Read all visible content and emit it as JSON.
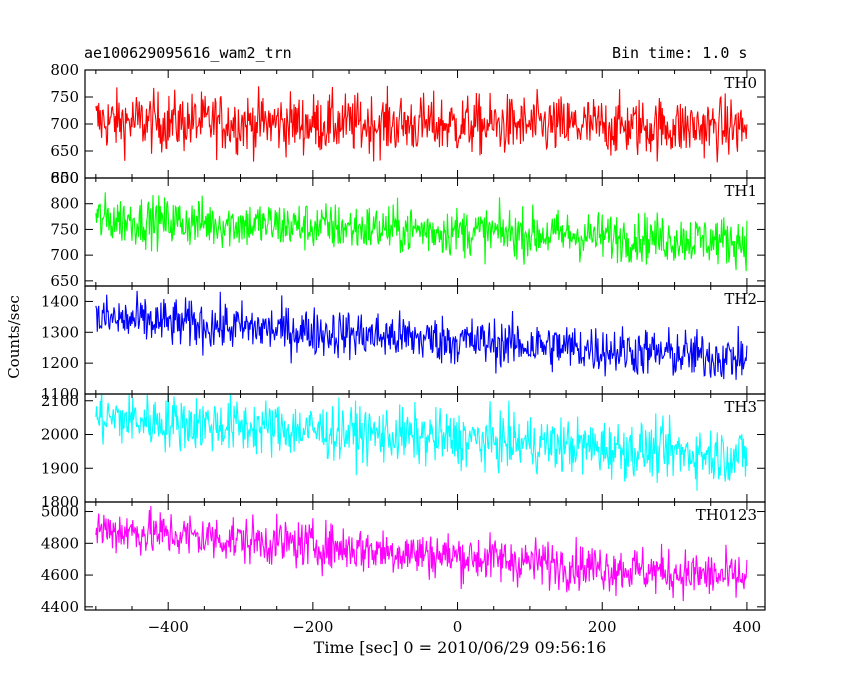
{
  "header": {
    "left_title": "ae100629095616_wam2_trn",
    "right_title": "Bin time: 1.0 s"
  },
  "chart_data": {
    "type": "line",
    "title": "ae100629095616_wam2_trn",
    "subtitle": "Bin time: 1.0 s",
    "xlabel": "Time [sec] 0 = 2010/06/29 09:56:16",
    "ylabel": "Counts/sec",
    "xlim": [
      -515,
      425
    ],
    "x_ticks": [
      -400,
      -200,
      0,
      200,
      400
    ],
    "x_range_data": [
      -500,
      400
    ],
    "grid": false,
    "panels": [
      {
        "name": "TH0",
        "color": "#ff0000",
        "ylim": [
          600,
          800
        ],
        "yticks": [
          600,
          650,
          700,
          750,
          800
        ],
        "start": 705,
        "end": 693,
        "noise": 28
      },
      {
        "name": "TH1",
        "color": "#00ff00",
        "ylim": [
          640,
          850
        ],
        "yticks": [
          650,
          700,
          750,
          800,
          850
        ],
        "start": 770,
        "end": 727,
        "noise": 24
      },
      {
        "name": "TH2",
        "color": "#0000ff",
        "ylim": [
          1100,
          1450
        ],
        "yticks": [
          1100,
          1200,
          1300,
          1400
        ],
        "start": 1345,
        "end": 1215,
        "noise": 40
      },
      {
        "name": "TH3",
        "color": "#00ffff",
        "ylim": [
          1800,
          2120
        ],
        "yticks": [
          1800,
          1900,
          2000,
          2100
        ],
        "start": 2050,
        "end": 1935,
        "noise": 42
      },
      {
        "name": "TH0123",
        "color": "#ff00ff",
        "ylim": [
          4380,
          5060
        ],
        "yticks": [
          4400,
          4600,
          4800,
          5000
        ],
        "start": 4890,
        "end": 4580,
        "noise": 75
      }
    ]
  }
}
